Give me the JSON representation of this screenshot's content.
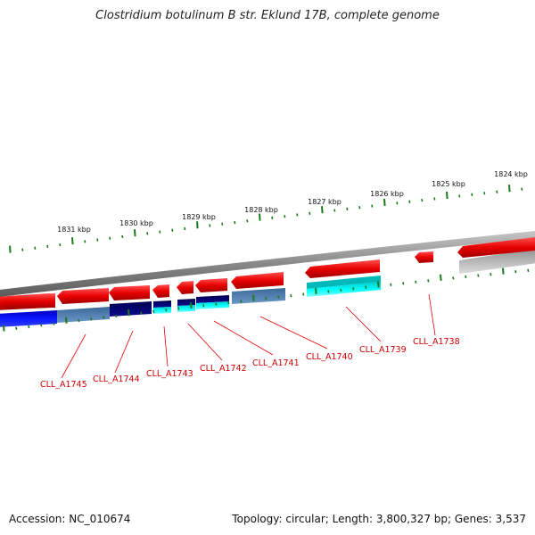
{
  "title": "Clostridium botulinum B str. Eklund 17B, complete genome",
  "accession": "Accession: NC_010674",
  "topology_info": "Topology: circular; Length: 3,800,327 bp; Genes: 3,537",
  "colors": {
    "forward_gene": "#e00000",
    "reverse_gene": "#e00000",
    "backbone": "#888888",
    "tick": "#1a7a1a",
    "label": "#cc0000",
    "navy": "#000070",
    "steel": "#4a78a8",
    "blue": "#0010e8",
    "cyan": "#00e8e8",
    "gray": "#b0b0b0"
  },
  "kbp_labels": [
    "1831 kbp",
    "1830 kbp",
    "1829 kbp",
    "1828 kbp",
    "1827 kbp",
    "1826 kbp",
    "1825 kbp",
    "1824 kbp"
  ],
  "gene_labels": [
    "CLL_A1745",
    "CLL_A1744",
    "CLL_A1743",
    "CLL_A1742",
    "CLL_A1741",
    "CLL_A1740",
    "CLL_A1739",
    "CLL_A1738"
  ]
}
